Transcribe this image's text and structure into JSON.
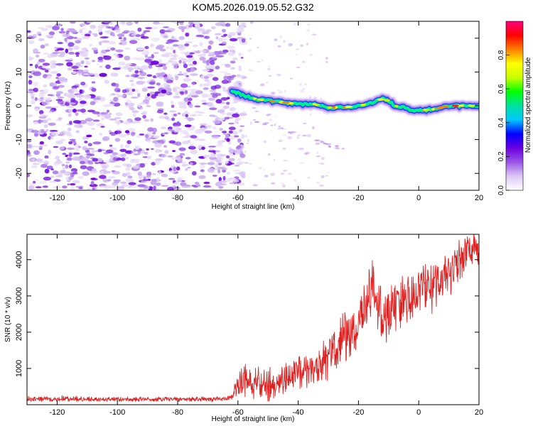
{
  "title": "KOM5.2026.019.05.52.G32",
  "chart_data": [
    {
      "type": "heatmap",
      "name": "spectrogram",
      "xlabel": "Height of straight line (km)",
      "ylabel": "Frequency (Hz)",
      "xlim": [
        -130,
        20
      ],
      "ylim": [
        -25,
        25
      ],
      "xticks": [
        "-120",
        "-100",
        "-80",
        "-60",
        "-40",
        "-20",
        "0",
        "20"
      ],
      "yticks": [
        "20",
        "10",
        "0",
        "-10",
        "-20"
      ],
      "colorbar": {
        "label": "Normalized spectral amplitude",
        "range": [
          0,
          1
        ],
        "ticks": [
          "0.0",
          "0.2",
          "0.4",
          "0.6",
          "0.8"
        ],
        "colors": [
          "#ffffff",
          "#dcc8f5",
          "#9a55e6",
          "#6a00e0",
          "#0000ff",
          "#00c8ff",
          "#00e0a0",
          "#00ff00",
          "#c8ff00",
          "#ffff00",
          "#ff8000",
          "#ff0000",
          "#ff0080"
        ]
      },
      "noise_region_km": [
        -130,
        -62
      ],
      "signal_trace": {
        "description_km_hz": [
          [
            -62,
            4.5
          ],
          [
            -58,
            3
          ],
          [
            -54,
            2
          ],
          [
            -50,
            1.5
          ],
          [
            -45,
            1
          ],
          [
            -40,
            0.5
          ],
          [
            -35,
            0.5
          ],
          [
            -30,
            -0.5
          ],
          [
            -25,
            -0.5
          ],
          [
            -20,
            0
          ],
          [
            -17,
            0.5
          ],
          [
            -14,
            1.5
          ],
          [
            -12,
            2
          ],
          [
            -10,
            1.5
          ],
          [
            -8,
            0
          ],
          [
            -5,
            -0.5
          ],
          [
            -2,
            -1.5
          ],
          [
            0,
            -1.5
          ],
          [
            5,
            -1
          ],
          [
            10,
            0
          ],
          [
            15,
            0
          ],
          [
            20,
            0
          ]
        ]
      }
    },
    {
      "type": "line",
      "name": "snr",
      "xlabel": "Height of straight line (km)",
      "ylabel": "SNR (10 * v/v)",
      "xlim": [
        -130,
        20
      ],
      "ylim": [
        0,
        4700
      ],
      "xticks": [
        "-120",
        "-100",
        "-80",
        "-60",
        "-40",
        "-20",
        "0",
        "20"
      ],
      "yticks": [
        "1000",
        "2000",
        "3000",
        "4000"
      ],
      "line_color": "#e02020",
      "envelope": [
        [
          -130,
          150
        ],
        [
          -100,
          150
        ],
        [
          -80,
          150
        ],
        [
          -65,
          160
        ],
        [
          -62,
          200
        ],
        [
          -60,
          600
        ],
        [
          -55,
          650
        ],
        [
          -50,
          500
        ],
        [
          -45,
          700
        ],
        [
          -40,
          900
        ],
        [
          -35,
          1000
        ],
        [
          -30,
          1300
        ],
        [
          -25,
          1800
        ],
        [
          -20,
          2200
        ],
        [
          -17,
          2700
        ],
        [
          -15,
          3500
        ],
        [
          -14,
          3000
        ],
        [
          -12,
          2400
        ],
        [
          -10,
          2600
        ],
        [
          -5,
          2900
        ],
        [
          0,
          3100
        ],
        [
          5,
          3400
        ],
        [
          10,
          3700
        ],
        [
          15,
          4100
        ],
        [
          18,
          4400
        ],
        [
          20,
          4400
        ]
      ],
      "noise_amplitude": [
        [
          -130,
          80
        ],
        [
          -62,
          80
        ],
        [
          -60,
          500
        ],
        [
          -40,
          600
        ],
        [
          -20,
          900
        ],
        [
          -15,
          1000
        ],
        [
          0,
          900
        ],
        [
          20,
          600
        ]
      ]
    }
  ]
}
